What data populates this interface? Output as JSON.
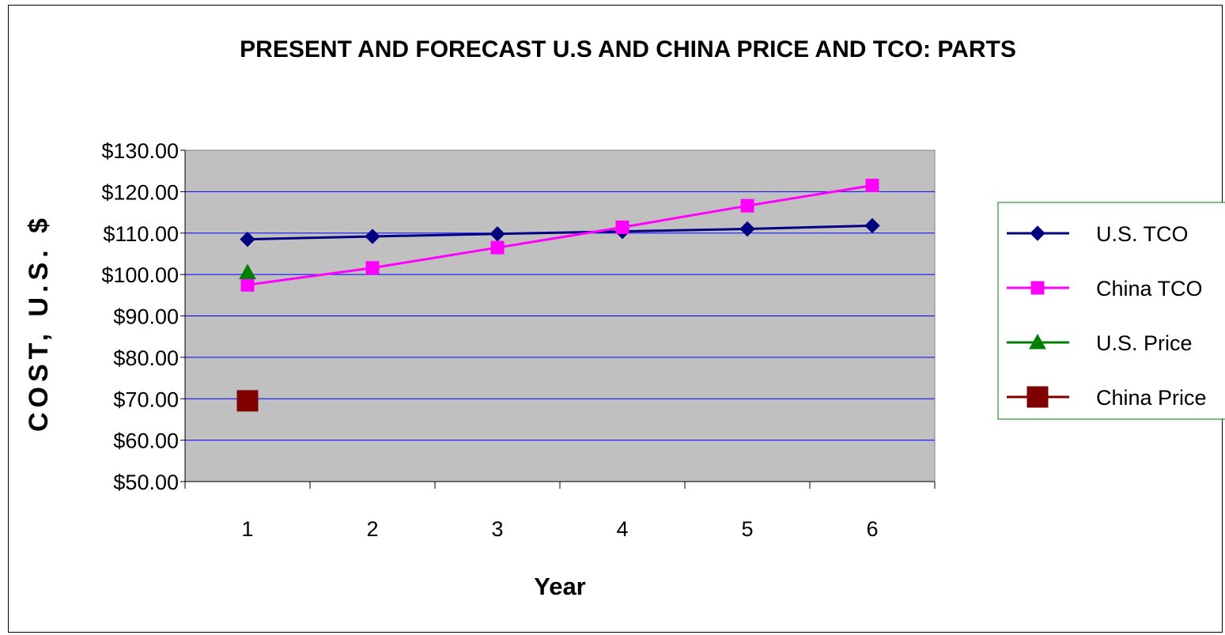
{
  "chart_data": {
    "type": "line",
    "title": "PRESENT AND FORECAST  U.S AND CHINA PRICE AND TCO: PARTS",
    "xlabel": "Year",
    "ylabel": "COST, U.S. $",
    "categories": [
      "1",
      "2",
      "3",
      "4",
      "5",
      "6"
    ],
    "ylim": [
      50,
      130
    ],
    "yticks": [
      50,
      60,
      70,
      80,
      90,
      100,
      110,
      120,
      130
    ],
    "ytick_labels": [
      "$50.00",
      "$60.00",
      "$70.00",
      "$80.00",
      "$90.00",
      "$100.00",
      "$110.00",
      "$120.00",
      "$130.00"
    ],
    "grid": true,
    "legend_position": "right",
    "plot_background": "#c0c0c0",
    "series": [
      {
        "name": "U.S. TCO",
        "values": [
          108.5,
          109.2,
          109.8,
          110.4,
          111.0,
          111.8
        ],
        "color": "#000080",
        "marker": "diamond",
        "line": true
      },
      {
        "name": "China TCO",
        "values": [
          97.5,
          101.6,
          106.5,
          111.4,
          116.6,
          121.5
        ],
        "color": "#ff00ff",
        "marker": "square",
        "line": true
      },
      {
        "name": "U.S. Price",
        "values": [
          100.5,
          null,
          null,
          null,
          null,
          null
        ],
        "color": "#008000",
        "marker": "triangle",
        "line": false
      },
      {
        "name": "China Price",
        "values": [
          69.5,
          null,
          null,
          null,
          null,
          null
        ],
        "color": "#800000",
        "marker": "big-square",
        "line": false
      }
    ]
  }
}
